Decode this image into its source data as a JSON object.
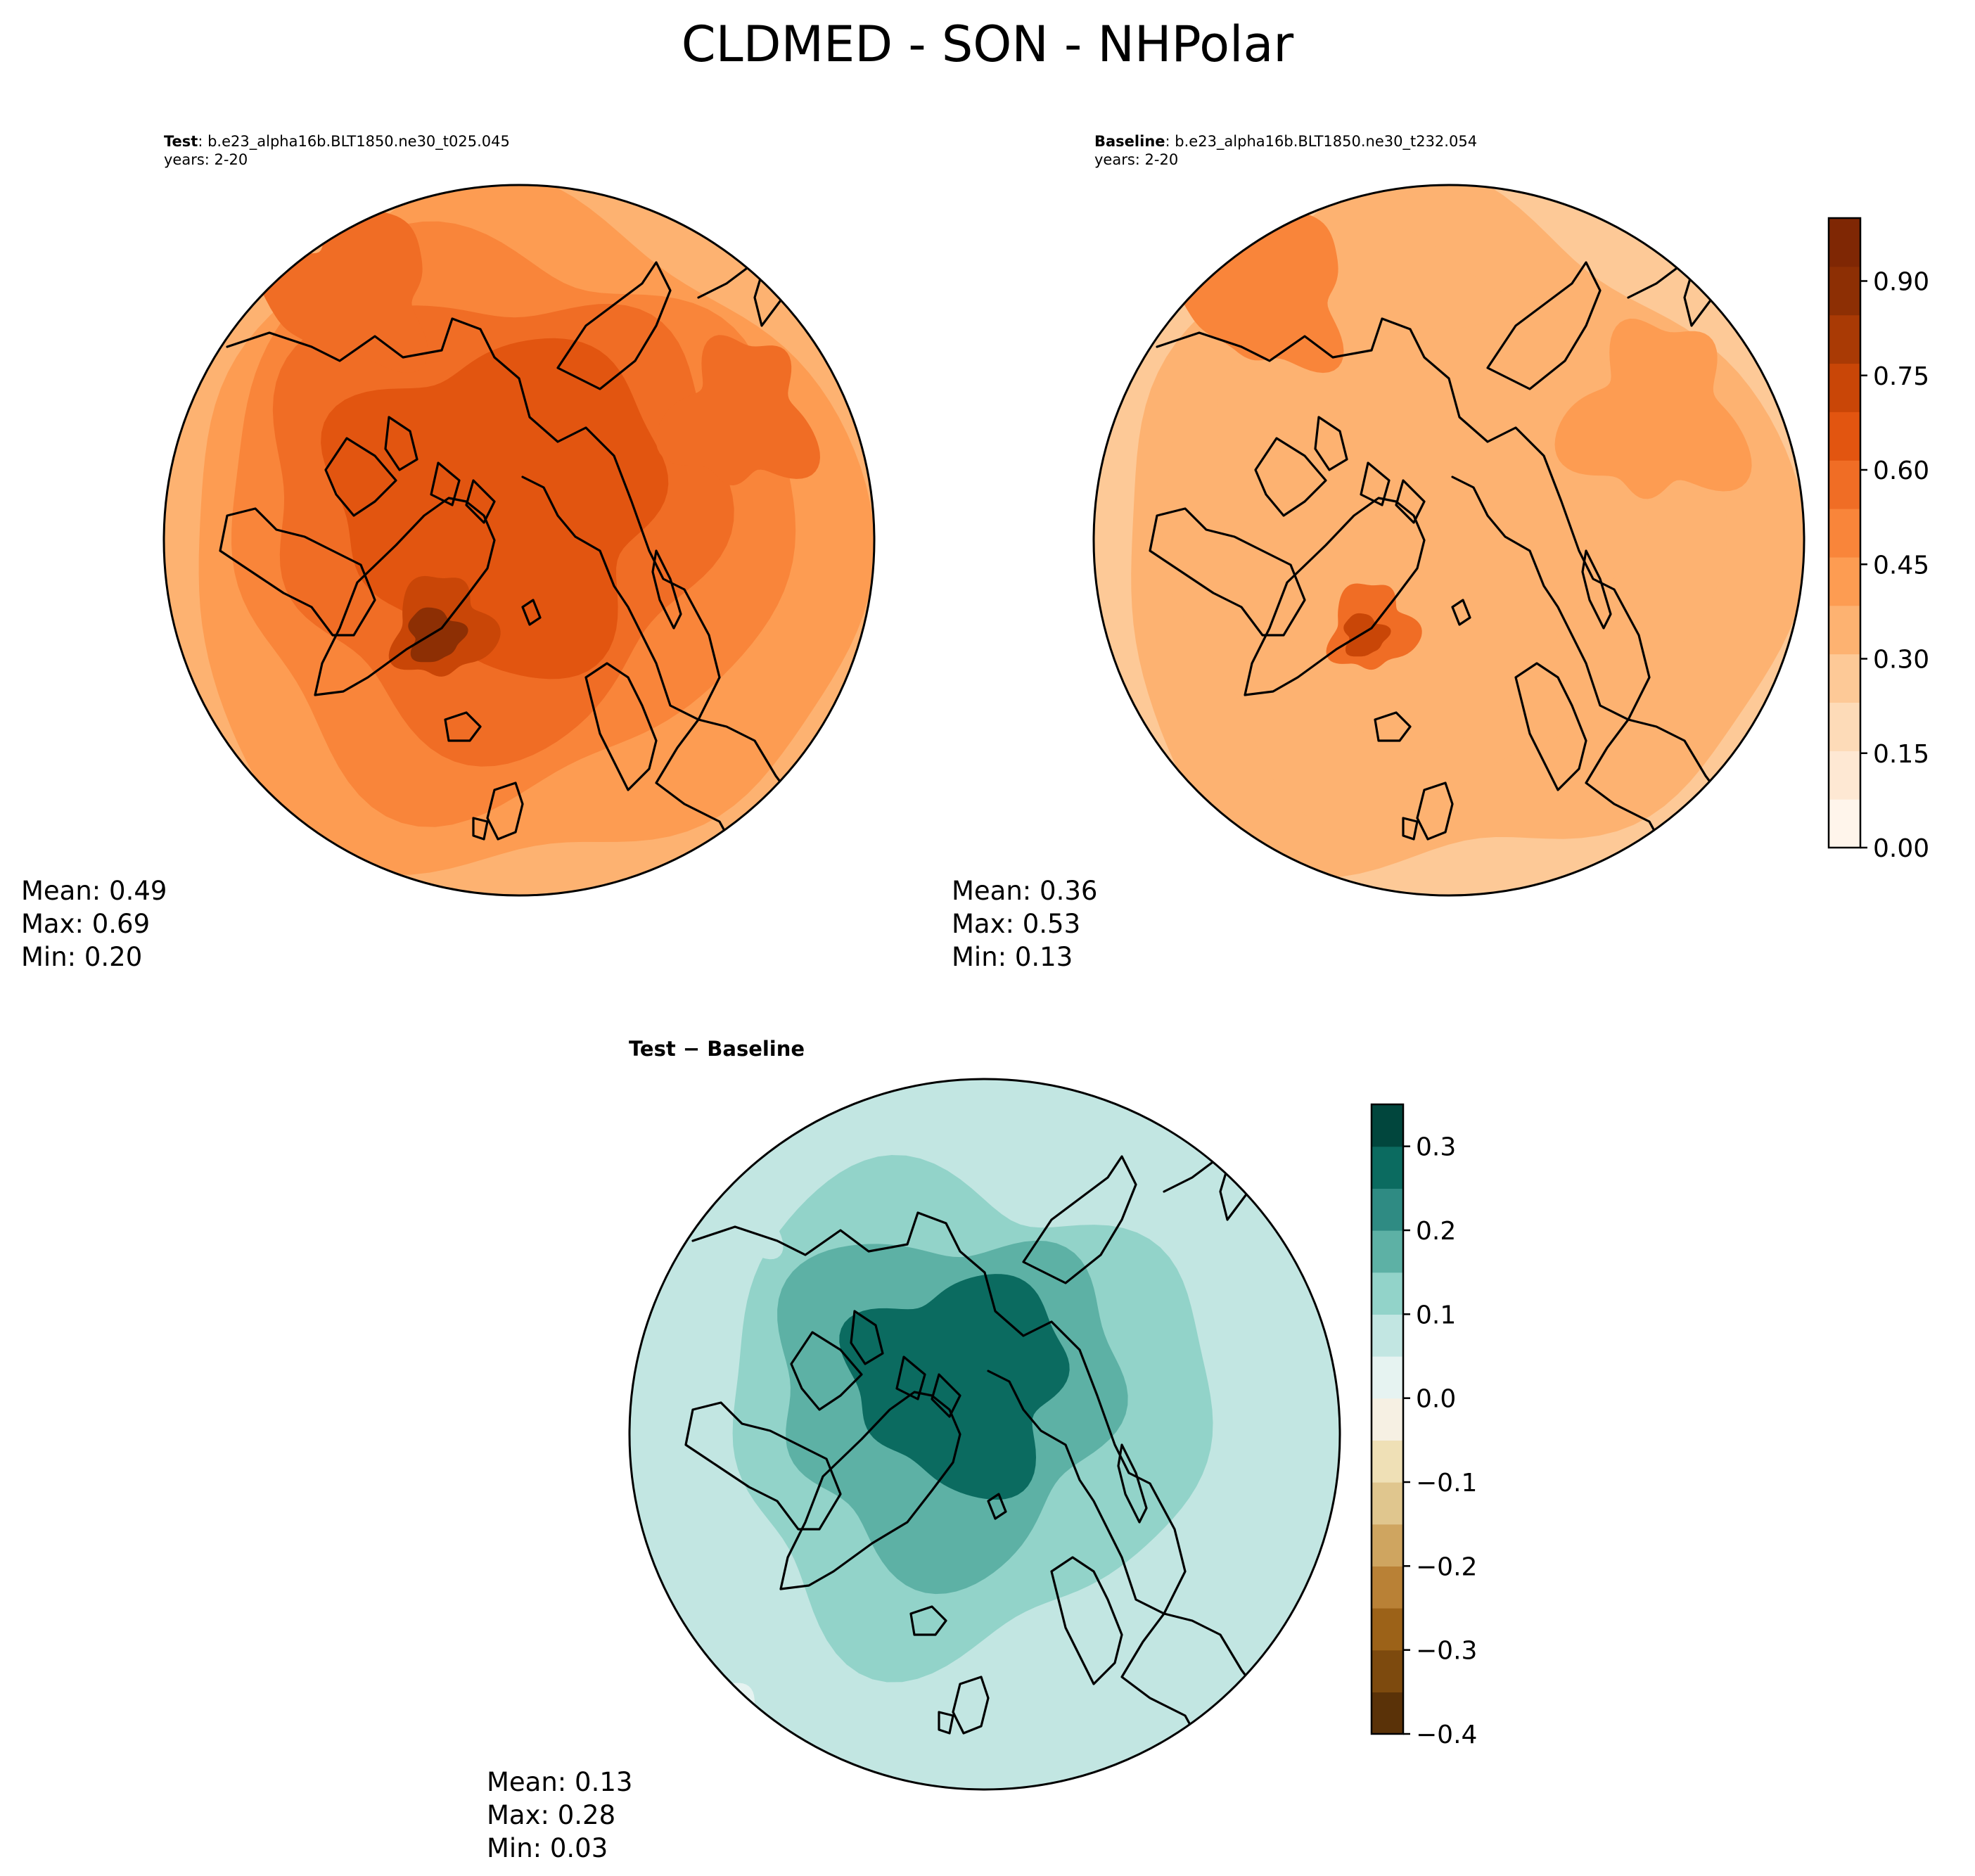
{
  "title": "CLDMED - SON - NHPolar",
  "panels": [
    {
      "id": "test",
      "label": "Test",
      "case": "b.e23_alpha16b.BLT1850.ne30_t025.045",
      "years": "years: 2-20",
      "stats": {
        "mean": "Mean:  0.49",
        "max": "Max:  0.69",
        "min": "Min:  0.20"
      }
    },
    {
      "id": "baseline",
      "label": "Baseline",
      "case": "b.e23_alpha16b.BLT1850.ne30_t232.054",
      "years": "years: 2-20",
      "stats": {
        "mean": "Mean:  0.36",
        "max": "Max:  0.53",
        "min": "Min:  0.13"
      }
    }
  ],
  "diff_panel": {
    "title_left": "Test",
    "title_op": "−",
    "title_right": "Baseline",
    "stats": {
      "mean": "Mean:  0.13",
      "max": "Max:  0.28",
      "min": "Min:  0.03"
    }
  },
  "chart_data": [
    {
      "type": "heatmap",
      "projection": "north polar stereographic",
      "panel": "Test",
      "colormap": "Oranges",
      "vmin": 0.0,
      "vmax": 1.0,
      "colorbar_ticks": [
        "0.00",
        "0.15",
        "0.30",
        "0.45",
        "0.60",
        "0.75",
        "0.90"
      ],
      "mean": 0.49,
      "max": 0.69,
      "min": 0.2
    },
    {
      "type": "heatmap",
      "projection": "north polar stereographic",
      "panel": "Baseline",
      "colormap": "Oranges",
      "vmin": 0.0,
      "vmax": 1.0,
      "colorbar_ticks": [
        "0.00",
        "0.15",
        "0.30",
        "0.45",
        "0.60",
        "0.75",
        "0.90"
      ],
      "mean": 0.36,
      "max": 0.53,
      "min": 0.13
    },
    {
      "type": "heatmap",
      "projection": "north polar stereographic",
      "panel": "Test - Baseline",
      "colormap": "BrBG",
      "vmin": -0.4,
      "vmax": 0.35,
      "colorbar_ticks": [
        "−0.4",
        "−0.3",
        "−0.2",
        "−0.1",
        "0.0",
        "0.1",
        "0.2",
        "0.3"
      ],
      "mean": 0.13,
      "max": 0.28,
      "min": 0.03
    }
  ],
  "colors": {
    "oranges": [
      "#fff5eb",
      "#fee8d3",
      "#fddbb8",
      "#fdc997",
      "#fdb271",
      "#fd9c52",
      "#f9853a",
      "#f06d25",
      "#e25510",
      "#c94607",
      "#a93a05",
      "#8d2f04",
      "#7f2704"
    ],
    "brbg": [
      "#5a3208",
      "#7d4a0e",
      "#9c6218",
      "#b98136",
      "#cfa560",
      "#e0c68e",
      "#efe0b6",
      "#f6f0e3",
      "#e6f3f1",
      "#c2e6e2",
      "#92d3c9",
      "#5db1a5",
      "#2f8b83",
      "#0b6b60",
      "#01463d"
    ]
  }
}
